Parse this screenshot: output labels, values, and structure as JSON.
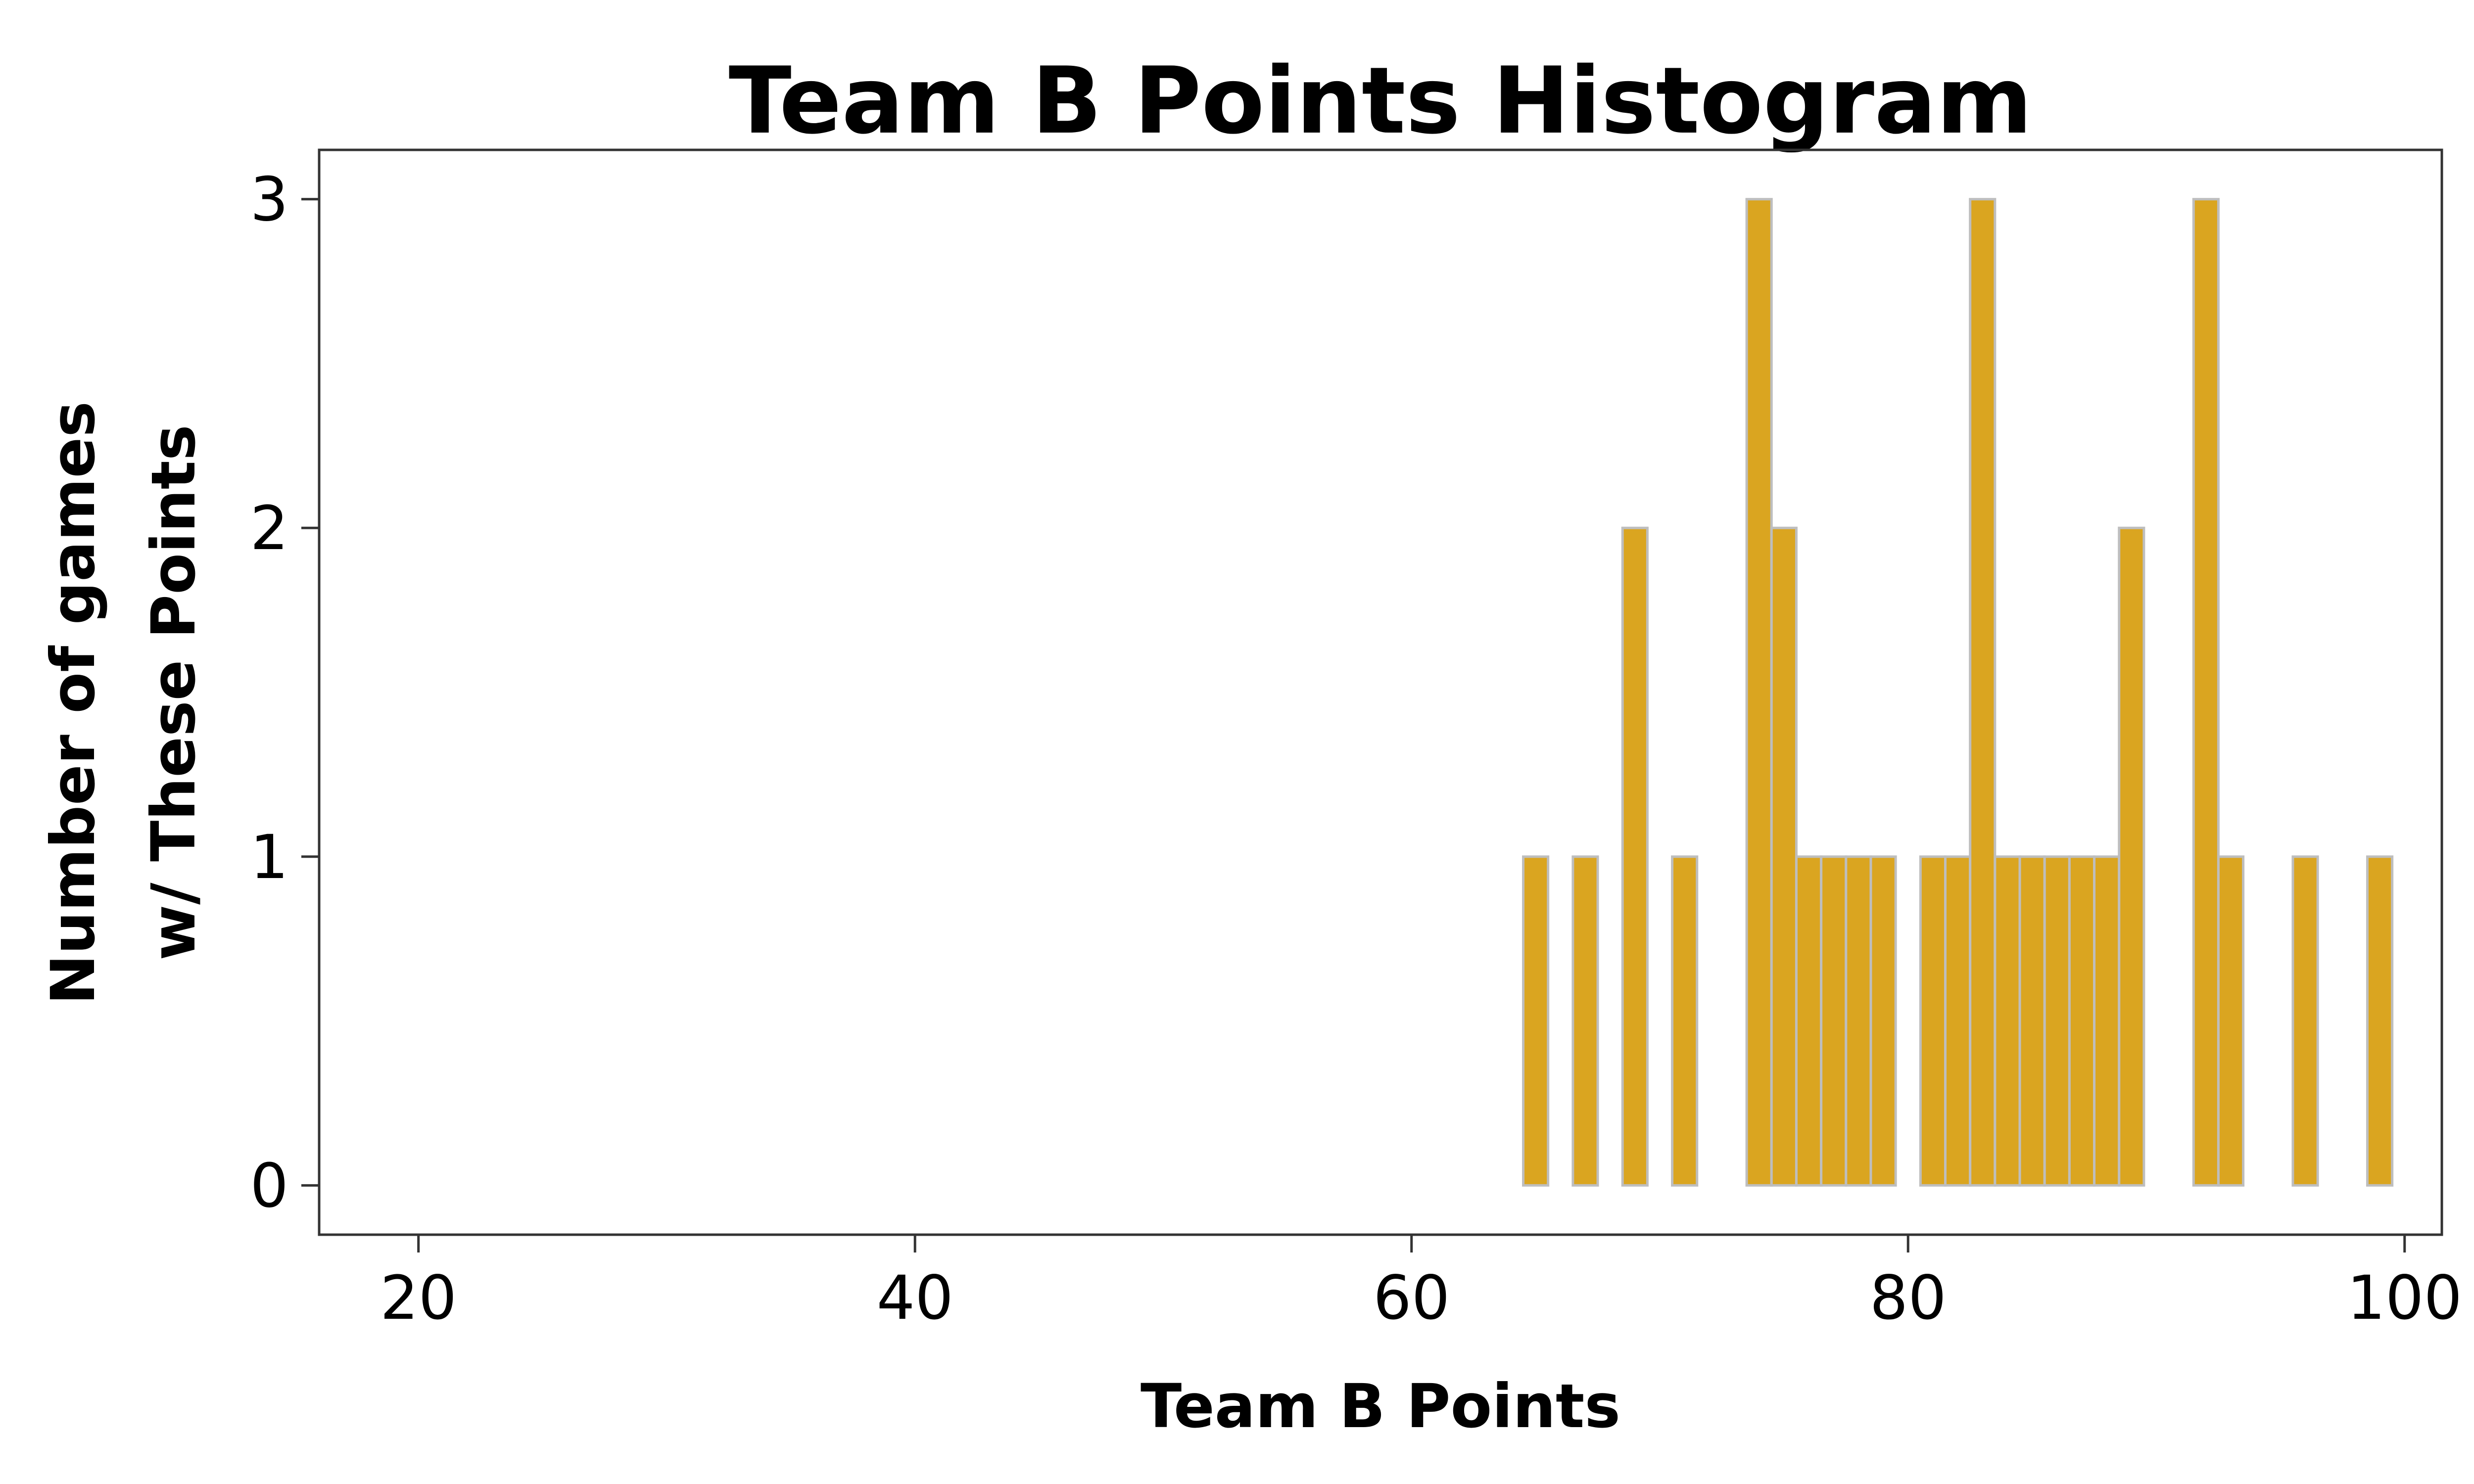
{
  "chart_data": {
    "type": "bar",
    "title": "Team B Points Histogram",
    "xlabel": "Team B Points",
    "ylabel_lines": [
      "Number of games",
      "w/ These Points"
    ],
    "xlim": [
      16,
      101.5
    ],
    "ylim": [
      -0.15,
      3.15
    ],
    "x_ticks": [
      20,
      40,
      60,
      80,
      100
    ],
    "y_ticks": [
      0,
      1,
      2,
      3
    ],
    "grid": false,
    "bin_width": 1,
    "bar_fill": "#DAA520",
    "bar_outline": "#BEBEBE",
    "bins": [
      {
        "x": 21,
        "count": 0
      },
      {
        "x": 22,
        "count": 0
      },
      {
        "x": 23,
        "count": 0
      },
      {
        "x": 24,
        "count": 0
      },
      {
        "x": 25,
        "count": 0
      },
      {
        "x": 26,
        "count": 0
      },
      {
        "x": 27,
        "count": 0
      },
      {
        "x": 28,
        "count": 0
      },
      {
        "x": 29,
        "count": 0
      },
      {
        "x": 30,
        "count": 0
      },
      {
        "x": 31,
        "count": 0
      },
      {
        "x": 32,
        "count": 0
      },
      {
        "x": 33,
        "count": 0
      },
      {
        "x": 34,
        "count": 0
      },
      {
        "x": 35,
        "count": 0
      },
      {
        "x": 36,
        "count": 0
      },
      {
        "x": 37,
        "count": 0
      },
      {
        "x": 38,
        "count": 0
      },
      {
        "x": 39,
        "count": 0
      },
      {
        "x": 40,
        "count": 0
      },
      {
        "x": 41,
        "count": 0
      },
      {
        "x": 42,
        "count": 0
      },
      {
        "x": 43,
        "count": 0
      },
      {
        "x": 44,
        "count": 0
      },
      {
        "x": 45,
        "count": 0
      },
      {
        "x": 46,
        "count": 0
      },
      {
        "x": 47,
        "count": 0
      },
      {
        "x": 48,
        "count": 0
      },
      {
        "x": 49,
        "count": 0
      },
      {
        "x": 50,
        "count": 0
      },
      {
        "x": 51,
        "count": 0
      },
      {
        "x": 52,
        "count": 0
      },
      {
        "x": 53,
        "count": 0
      },
      {
        "x": 54,
        "count": 0
      },
      {
        "x": 55,
        "count": 0
      },
      {
        "x": 56,
        "count": 0
      },
      {
        "x": 57,
        "count": 0
      },
      {
        "x": 58,
        "count": 0
      },
      {
        "x": 59,
        "count": 0
      },
      {
        "x": 60,
        "count": 0
      },
      {
        "x": 61,
        "count": 0
      },
      {
        "x": 62,
        "count": 0
      },
      {
        "x": 63,
        "count": 0
      },
      {
        "x": 64,
        "count": 0
      },
      {
        "x": 65,
        "count": 1
      },
      {
        "x": 66,
        "count": 0
      },
      {
        "x": 67,
        "count": 1
      },
      {
        "x": 68,
        "count": 0
      },
      {
        "x": 69,
        "count": 2
      },
      {
        "x": 70,
        "count": 0
      },
      {
        "x": 71,
        "count": 1
      },
      {
        "x": 72,
        "count": 0
      },
      {
        "x": 73,
        "count": 0
      },
      {
        "x": 74,
        "count": 3
      },
      {
        "x": 75,
        "count": 2
      },
      {
        "x": 76,
        "count": 1
      },
      {
        "x": 77,
        "count": 1
      },
      {
        "x": 78,
        "count": 1
      },
      {
        "x": 79,
        "count": 1
      },
      {
        "x": 80,
        "count": 0
      },
      {
        "x": 81,
        "count": 1
      },
      {
        "x": 82,
        "count": 1
      },
      {
        "x": 83,
        "count": 3
      },
      {
        "x": 84,
        "count": 1
      },
      {
        "x": 85,
        "count": 1
      },
      {
        "x": 86,
        "count": 1
      },
      {
        "x": 87,
        "count": 1
      },
      {
        "x": 88,
        "count": 1
      },
      {
        "x": 89,
        "count": 2
      },
      {
        "x": 90,
        "count": 0
      },
      {
        "x": 91,
        "count": 0
      },
      {
        "x": 92,
        "count": 3
      },
      {
        "x": 93,
        "count": 1
      },
      {
        "x": 94,
        "count": 0
      },
      {
        "x": 95,
        "count": 0
      },
      {
        "x": 96,
        "count": 1
      },
      {
        "x": 97,
        "count": 0
      },
      {
        "x": 98,
        "count": 0
      },
      {
        "x": 99,
        "count": 1
      }
    ]
  }
}
